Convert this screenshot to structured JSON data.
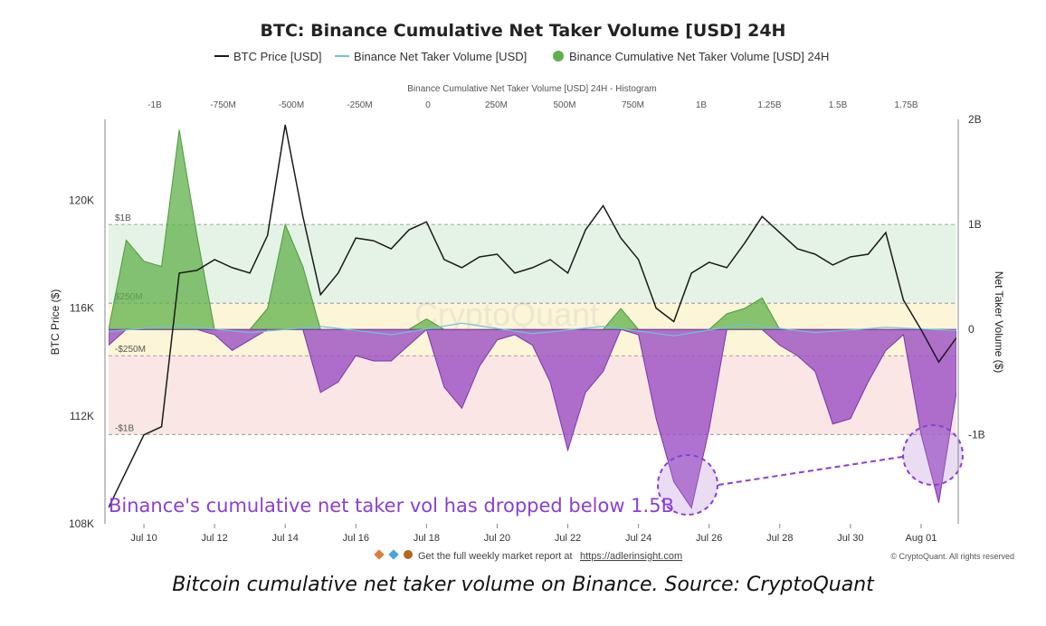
{
  "title": "BTC: Binance Cumulative Net Taker Volume [USD] 24H",
  "legend": [
    {
      "label": "BTC Price [USD]",
      "color": "#1a1a1a",
      "kind": "line"
    },
    {
      "label": "Binance Net Taker Volume [USD]",
      "color": "#6fc3d8",
      "kind": "line"
    },
    {
      "label": "Binance Cumulative Net Taker Volume [USD] 24H",
      "color": "#5fb04a",
      "kind": "dot"
    }
  ],
  "hist_axis_title": "Binance Cumulative Net Taker Volume [USD] 24H - Histogram",
  "hist_ticks": [
    "-1B",
    "-750M",
    "-500M",
    "-250M",
    "0",
    "250M",
    "500M",
    "750M",
    "1B",
    "1.25B",
    "1.5B",
    "1.75B"
  ],
  "y_left_label": "BTC Price ($)",
  "y_left_ticks": [
    "120K",
    "116K",
    "112K",
    "108K"
  ],
  "y_right_label": "Net Taker Volume ($)",
  "y_right_ticks": [
    "2B",
    "1B",
    "0",
    "-1B"
  ],
  "x_ticks": [
    "Jul 10",
    "Jul 12",
    "Jul 14",
    "Jul 16",
    "Jul 18",
    "Jul 20",
    "Jul 22",
    "Jul 24",
    "Jul 26",
    "Jul 28",
    "Jul 30",
    "Aug 01"
  ],
  "band_labels": [
    "$1B",
    "$250M",
    "-$250M",
    "-$1B"
  ],
  "annotation": "Binance's cumulative net taker vol has dropped below 1.5B",
  "footer": {
    "text": "Get the full weekly market report at",
    "link": "https://adlerinsight.com"
  },
  "copyright": "© CryptoQuant. All rights reserved",
  "watermark": "CryptoQuant",
  "caption": "Bitcoin cumulative net taker volume on Binance. Source: CryptoQuant",
  "colors": {
    "green": "#5fb04a",
    "purple": "#9b4fc4",
    "price": "#1a1a1a",
    "taker": "#6fc3d8",
    "histogram": "#c7e6c0",
    "band_green": "#e5f3e6",
    "band_yellow": "#fdf5d8",
    "band_pink": "#fbe6e6"
  },
  "chart_data": {
    "type": "line",
    "x_range": [
      "2025-07-09",
      "2025-08-02"
    ],
    "price_ylim": [
      108000,
      123000
    ],
    "volume_ylim": [
      -1850000000,
      2000000000
    ],
    "series": [
      {
        "name": "BTC Price [USD]",
        "axis": "left",
        "x": [
          "2025-07-09",
          "2025-07-10",
          "2025-07-10 12:00",
          "2025-07-11",
          "2025-07-11 12:00",
          "2025-07-12",
          "2025-07-12 12:00",
          "2025-07-13",
          "2025-07-13 12:00",
          "2025-07-14",
          "2025-07-14 12:00",
          "2025-07-15",
          "2025-07-15 12:00",
          "2025-07-16",
          "2025-07-16 12:00",
          "2025-07-17",
          "2025-07-17 12:00",
          "2025-07-18",
          "2025-07-18 12:00",
          "2025-07-19",
          "2025-07-19 12:00",
          "2025-07-20",
          "2025-07-20 12:00",
          "2025-07-21",
          "2025-07-21 12:00",
          "2025-07-22",
          "2025-07-22 12:00",
          "2025-07-23",
          "2025-07-23 12:00",
          "2025-07-24",
          "2025-07-24 12:00",
          "2025-07-25",
          "2025-07-25 12:00",
          "2025-07-26",
          "2025-07-26 12:00",
          "2025-07-27",
          "2025-07-27 12:00",
          "2025-07-28",
          "2025-07-28 12:00",
          "2025-07-29",
          "2025-07-29 12:00",
          "2025-07-30",
          "2025-07-30 12:00",
          "2025-07-31",
          "2025-07-31 12:00",
          "2025-08-01",
          "2025-08-01 12:00",
          "2025-08-02"
        ],
        "y": [
          108600,
          111300,
          111600,
          117300,
          117400,
          117800,
          117500,
          117300,
          118700,
          122800,
          119400,
          116500,
          117300,
          118600,
          118500,
          118200,
          118900,
          119200,
          117800,
          117500,
          117900,
          118000,
          117300,
          117500,
          117800,
          117300,
          118900,
          119800,
          118600,
          117800,
          116000,
          115500,
          117300,
          117700,
          117500,
          118400,
          119400,
          118800,
          118200,
          118000,
          117600,
          117900,
          118000,
          118800,
          116300,
          115200,
          114000,
          114900
        ]
      },
      {
        "name": "Binance Net Taker Volume [USD]",
        "axis": "right",
        "x": [
          "2025-07-09",
          "2025-07-11",
          "2025-07-13",
          "2025-07-15",
          "2025-07-17",
          "2025-07-19",
          "2025-07-21",
          "2025-07-23",
          "2025-07-25",
          "2025-07-27",
          "2025-07-29",
          "2025-07-31",
          "2025-08-02"
        ],
        "y": [
          -20000000,
          40000000,
          -30000000,
          30000000,
          -50000000,
          60000000,
          -40000000,
          30000000,
          -60000000,
          50000000,
          -30000000,
          20000000,
          -10000000
        ]
      },
      {
        "name": "Binance Cumulative Net Taker Volume [USD] 24H",
        "axis": "right",
        "x": [
          "2025-07-09",
          "2025-07-09 12:00",
          "2025-07-10",
          "2025-07-10 12:00",
          "2025-07-11",
          "2025-07-11 12:00",
          "2025-07-12",
          "2025-07-12 12:00",
          "2025-07-13",
          "2025-07-13 12:00",
          "2025-07-14",
          "2025-07-14 12:00",
          "2025-07-15",
          "2025-07-15 12:00",
          "2025-07-16",
          "2025-07-16 12:00",
          "2025-07-17",
          "2025-07-17 12:00",
          "2025-07-18",
          "2025-07-18 12:00",
          "2025-07-19",
          "2025-07-19 12:00",
          "2025-07-20",
          "2025-07-20 12:00",
          "2025-07-21",
          "2025-07-21 12:00",
          "2025-07-22",
          "2025-07-22 12:00",
          "2025-07-23",
          "2025-07-23 12:00",
          "2025-07-24",
          "2025-07-24 12:00",
          "2025-07-25",
          "2025-07-25 12:00",
          "2025-07-26",
          "2025-07-26 12:00",
          "2025-07-27",
          "2025-07-27 12:00",
          "2025-07-28",
          "2025-07-28 12:00",
          "2025-07-29",
          "2025-07-29 12:00",
          "2025-07-30",
          "2025-07-30 12:00",
          "2025-07-31",
          "2025-07-31 12:00",
          "2025-08-01",
          "2025-08-01 12:00",
          "2025-08-02"
        ],
        "y": [
          -150000000,
          850000000,
          650000000,
          600000000,
          1900000000,
          900000000,
          -50000000,
          -200000000,
          -100000000,
          200000000,
          1000000000,
          600000000,
          -600000000,
          -500000000,
          -250000000,
          -300000000,
          -300000000,
          -150000000,
          100000000,
          -550000000,
          -750000000,
          -350000000,
          -100000000,
          -50000000,
          -150000000,
          -500000000,
          -1150000000,
          -600000000,
          -400000000,
          200000000,
          -50000000,
          -850000000,
          -1450000000,
          -1700000000,
          -950000000,
          150000000,
          200000000,
          300000000,
          -150000000,
          -250000000,
          -400000000,
          -900000000,
          -850000000,
          -500000000,
          -200000000,
          -50000000,
          -1000000000,
          -1650000000,
          -600000000
        ]
      }
    ],
    "histogram": {
      "x": [
        "2025-07-09",
        "2025-07-10",
        "2025-07-11",
        "2025-07-12",
        "2025-07-13",
        "2025-07-14",
        "2025-07-15",
        "2025-07-16",
        "2025-07-17",
        "2025-07-18",
        "2025-07-19",
        "2025-07-20",
        "2025-07-21",
        "2025-07-22",
        "2025-07-23",
        "2025-07-24",
        "2025-07-25",
        "2025-07-26",
        "2025-07-27",
        "2025-07-28",
        "2025-07-29",
        "2025-07-30",
        "2025-07-31",
        "2025-08-01"
      ],
      "y": [
        10500,
        11300,
        11700,
        11950,
        11950,
        12150,
        12150,
        15850,
        15850,
        15250,
        15250,
        13600,
        13600,
        11500,
        11500,
        11000,
        11450,
        10650,
        10650,
        10300,
        10300,
        10450,
        10450,
        11300
      ]
    },
    "band_levels": [
      1000000000,
      250000000,
      -250000000,
      -1000000000
    ],
    "grid": false,
    "legend_position": "top"
  }
}
